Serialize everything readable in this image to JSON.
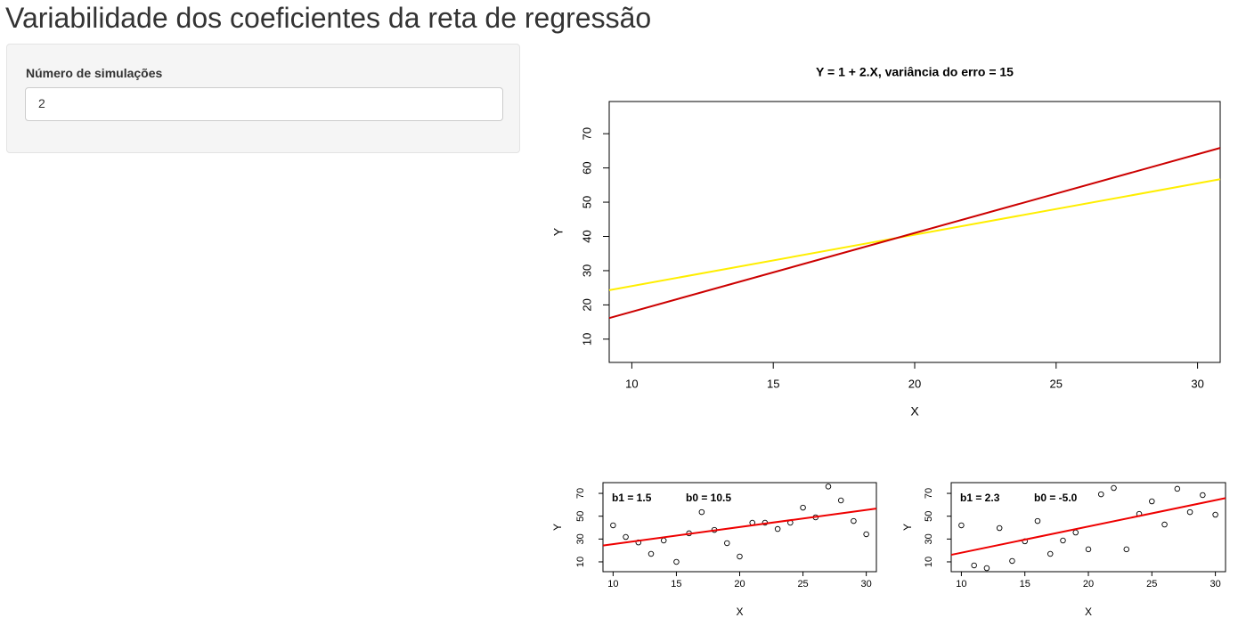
{
  "page_title": "Variabilidade dos coeficientes da reta de regressão",
  "sidebar": {
    "label": "Número de simulações",
    "input_value": 2
  },
  "chart_data": [
    {
      "type": "line",
      "title": "Y = 1 + 2.X, variância do erro = 15",
      "x_label": "X",
      "y_label": "Y",
      "xlim": [
        9.2,
        30.8
      ],
      "ylim": [
        3.2,
        79.4
      ],
      "xticks": [
        10,
        15,
        20,
        25,
        30
      ],
      "yticks": [
        10,
        20,
        30,
        40,
        50,
        60,
        70
      ],
      "series": [
        {
          "color": "#ffee00",
          "x": [
            9.2,
            30.8
          ],
          "values": [
            24.3,
            56.7
          ]
        },
        {
          "color": "#cc0000",
          "x": [
            9.2,
            30.8
          ],
          "values": [
            16.16,
            65.84
          ]
        }
      ]
    },
    {
      "type": "scatter",
      "x_label": "X",
      "y_label": "Y",
      "annotations": [
        "b1 =  1.5",
        "b0 =  10.5"
      ],
      "xlim": [
        9.2,
        30.8
      ],
      "ylim": [
        1.4,
        79.4
      ],
      "xticks": [
        10,
        15,
        20,
        25,
        30
      ],
      "yticks": [
        10,
        30,
        50,
        70
      ],
      "x": [
        10,
        11,
        12,
        13,
        14,
        15,
        16,
        17,
        18,
        19,
        20,
        21,
        22,
        23,
        24,
        25,
        26,
        27,
        28,
        29,
        30
      ],
      "values": [
        42,
        31.8,
        27,
        17,
        28.7,
        10,
        35,
        53.6,
        38,
        26.4,
        14.7,
        44.3,
        44.3,
        38.8,
        44.3,
        57.5,
        49,
        76,
        63.8,
        45.8,
        34.2
      ],
      "line": {
        "color": "#ee0000",
        "x": [
          9.2,
          30.8
        ],
        "values": [
          24.3,
          56.7
        ]
      }
    },
    {
      "type": "scatter",
      "x_label": "X",
      "y_label": "Y",
      "annotations": [
        "b1 =  2.3",
        "b0 =  -5.0"
      ],
      "xlim": [
        9.2,
        30.8
      ],
      "ylim": [
        1.4,
        79.4
      ],
      "xticks": [
        10,
        15,
        20,
        25,
        30
      ],
      "yticks": [
        10,
        30,
        50,
        70
      ],
      "x": [
        10,
        11,
        12,
        13,
        14,
        15,
        16,
        17,
        18,
        19,
        20,
        21,
        22,
        23,
        24,
        25,
        26,
        27,
        28,
        29,
        30
      ],
      "values": [
        42,
        6.9,
        4.5,
        39.6,
        10.8,
        28,
        45.8,
        17,
        28.7,
        35.7,
        21,
        69.2,
        74.7,
        21,
        52,
        63,
        42.7,
        74,
        53.6,
        68.5,
        51.3
      ],
      "line": {
        "color": "#ee0000",
        "x": [
          9.2,
          30.8
        ],
        "values": [
          16.16,
          65.84
        ]
      }
    }
  ]
}
